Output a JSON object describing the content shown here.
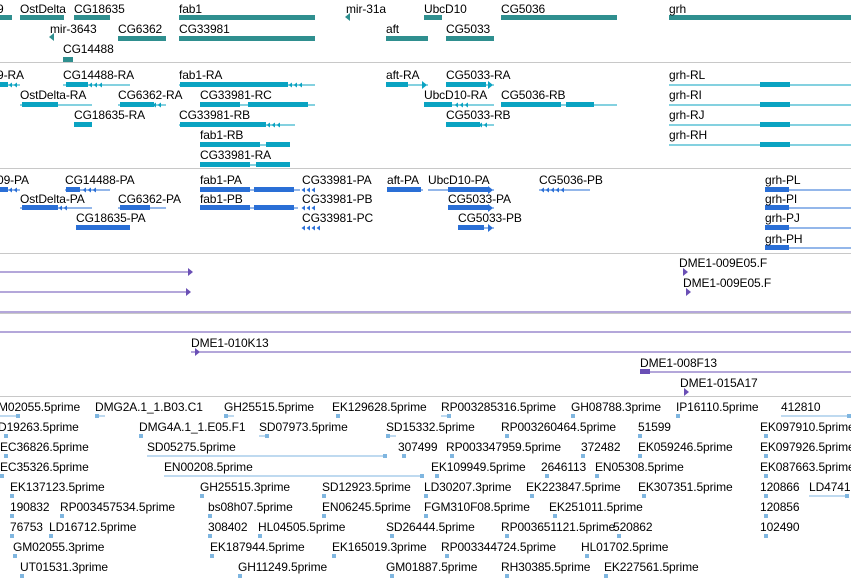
{
  "colors": {
    "gene": "#2f8f8f",
    "transcript": "#0aa3c2",
    "cds": "#2a6fd6",
    "clone": "#6a4fb5",
    "est": "#7fb6e0",
    "separator": "#c8c8c8"
  },
  "tracks": {
    "genes": [
      "9",
      "OstDelta",
      "CG18635",
      "fab1",
      "mir-31a",
      "UbcD10",
      "CG5036",
      "grh",
      "mir-3643",
      "CG6362",
      "CG33981",
      "aft",
      "CG5033",
      "CG14488"
    ],
    "transcripts": [
      "9-RA",
      "CG14488-RA",
      "fab1-RA",
      "aft-RA",
      "CG5033-RA",
      "grh-RL",
      "OstDelta-RA",
      "CG6362-RA",
      "CG33981-RC",
      "UbcD10-RA",
      "CG5036-RB",
      "grh-RI",
      "CG18635-RA",
      "CG33981-RB",
      "CG5033-RB",
      "grh-RJ",
      "fab1-RB",
      "grh-RH",
      "CG33981-RA"
    ],
    "proteins": [
      "09-PA",
      "CG14488-PA",
      "fab1-PA",
      "CG33981-PA",
      "aft-PA",
      "UbcD10-PA",
      "CG5036-PB",
      "grh-PL",
      "OstDelta-PA",
      "CG6362-PA",
      "fab1-PB",
      "CG33981-PB",
      "CG5033-PA",
      "grh-PI",
      "CG18635-PA",
      "CG33981-PC",
      "CG5033-PB",
      "grh-PJ",
      "grh-PH"
    ],
    "clones": [
      "DME1-009E05.F",
      "DME1-009E05.F",
      "DME1-010K13",
      "DME1-008F13",
      "DME1-015A17"
    ],
    "ests": [
      "M02055.5prime",
      "DMG2A.1_1.B03.C1",
      "GH25515.5prime",
      "EK129628.5prime",
      "RP003285316.5prime",
      "GH08788.3prime",
      "IP16110.5prime",
      "412810",
      "D19263.5prime",
      "DMG4A.1_1.E05.F1",
      "SD07973.5prime",
      "SD15332.5prime",
      "RP003260464.5prime",
      "51599",
      "EK097910.5prime",
      "EC36826.5prime",
      "SD05275.5prime",
      "307499",
      "RP003347959.5prime",
      "372482",
      "EK059246.5prime",
      "EK097926.5prime",
      "EC35326.5prime",
      "EN00208.5prime",
      "EK109949.5prime",
      "2646113",
      "EN05308.5prime",
      "EK087663.5prime",
      "EK137123.5prime",
      "GH25515.3prime",
      "SD12923.5prime",
      "LD30207.3prime",
      "EK223847.5prime",
      "EK307351.5prime",
      "120866",
      "LD4741",
      "190832",
      "RP003457534.5prime",
      "bs08h07.5prime",
      "EN06245.5prime",
      "FGM310F08.5prime",
      "EK251011.5prime",
      "120856",
      "76753",
      "LD16712.5prime",
      "308402",
      "HL04505.5prime",
      "SD26444.5prime",
      "RP003651121.5prime",
      "520862",
      "102490",
      "GM02055.3prime",
      "EK187944.5prime",
      "EK165019.3prime",
      "RP003344724.5prime",
      "HL01702.5prime",
      "UT01531.3prime",
      "GH11249.5prime",
      "GM01887.5prime",
      "RH30385.5prime",
      "EK227561.5prime"
    ]
  }
}
